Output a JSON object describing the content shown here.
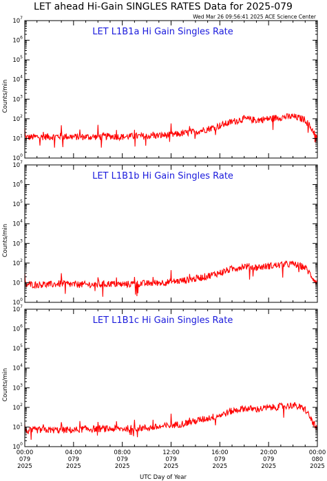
{
  "page": {
    "title": "LET ahead Hi-Gain SINGLES RATES Data for 2025-079",
    "timestamp": "Wed Mar 26 09:56:41 2025 ACE Science Center"
  },
  "colors": {
    "trace": "#ff0000",
    "panel_title": "#1a1adc",
    "axes": "#000000"
  },
  "chart_data": [
    {
      "type": "line",
      "title": "LET L1B1a Hi Gain Singles Rate",
      "ylabel": "Counts/min",
      "xlabel": "UTC Day of Year",
      "yscale": "log",
      "ylim": [
        1,
        10000000
      ],
      "xlim": [
        0,
        24
      ],
      "grid": false,
      "series": [
        {
          "x": [
            0,
            1,
            2,
            3,
            4,
            5,
            6,
            7,
            8,
            9,
            10,
            11,
            12,
            13,
            14,
            15,
            16,
            17,
            18,
            19,
            20,
            21,
            22,
            23,
            24
          ],
          "values": [
            11,
            12,
            12,
            13,
            12,
            12,
            12,
            13,
            12,
            13,
            13,
            14,
            15,
            18,
            22,
            30,
            45,
            70,
            100,
            85,
            100,
            120,
            130,
            90,
            12
          ]
        }
      ]
    },
    {
      "type": "line",
      "title": "LET L1B1b Hi Gain Singles Rate",
      "ylabel": "Counts/min",
      "xlabel": "UTC Day of Year",
      "yscale": "log",
      "ylim": [
        1,
        10000000
      ],
      "xlim": [
        0,
        24
      ],
      "grid": false,
      "series": [
        {
          "x": [
            0,
            1,
            2,
            3,
            4,
            5,
            6,
            7,
            8,
            9,
            10,
            11,
            12,
            13,
            14,
            15,
            16,
            17,
            18,
            19,
            20,
            21,
            22,
            23,
            24
          ],
          "values": [
            8,
            8,
            8,
            9,
            8,
            8,
            8,
            9,
            8,
            9,
            9,
            10,
            11,
            13,
            16,
            22,
            32,
            50,
            70,
            60,
            70,
            80,
            90,
            60,
            9
          ]
        }
      ]
    },
    {
      "type": "line",
      "title": "LET L1B1c Hi Gain Singles Rate",
      "ylabel": "Counts/min",
      "xlabel": "UTC Day of Year",
      "yscale": "log",
      "ylim": [
        1,
        10000000
      ],
      "xlim": [
        0,
        24
      ],
      "grid": false,
      "series": [
        {
          "x": [
            0,
            1,
            2,
            3,
            4,
            5,
            6,
            7,
            8,
            9,
            10,
            11,
            12,
            13,
            14,
            15,
            16,
            17,
            18,
            19,
            20,
            21,
            22,
            23,
            24
          ],
          "values": [
            6,
            7,
            7,
            7,
            7,
            8,
            8,
            8,
            8,
            9,
            9,
            10,
            12,
            15,
            20,
            28,
            40,
            65,
            90,
            80,
            95,
            110,
            130,
            80,
            7
          ]
        }
      ]
    }
  ],
  "yticks": [
    {
      "base": "10",
      "exp": "0"
    },
    {
      "base": "10",
      "exp": "1"
    },
    {
      "base": "10",
      "exp": "2"
    },
    {
      "base": "10",
      "exp": "3"
    },
    {
      "base": "10",
      "exp": "4"
    },
    {
      "base": "10",
      "exp": "5"
    },
    {
      "base": "10",
      "exp": "6"
    },
    {
      "base": "10",
      "exp": "7"
    }
  ],
  "xticks": [
    {
      "x": 0,
      "time": "00:00",
      "doy": "079",
      "year": "2025"
    },
    {
      "x": 4,
      "time": "04:00",
      "doy": "079",
      "year": "2025"
    },
    {
      "x": 8,
      "time": "08:00",
      "doy": "079",
      "year": "2025"
    },
    {
      "x": 12,
      "time": "12:00",
      "doy": "079",
      "year": "2025"
    },
    {
      "x": 16,
      "time": "16:00",
      "doy": "079",
      "year": "2025"
    },
    {
      "x": 20,
      "time": "20:00",
      "doy": "079",
      "year": "2025"
    },
    {
      "x": 24,
      "time": "00:00",
      "doy": "080",
      "year": "2025"
    }
  ]
}
